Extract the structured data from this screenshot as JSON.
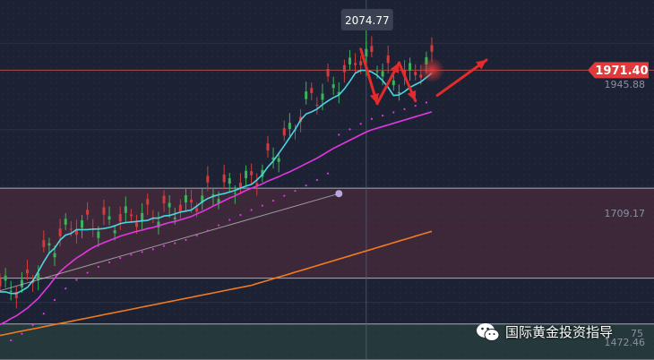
{
  "chart_data": {
    "type": "line",
    "title": "",
    "xlabel": "",
    "ylabel": "",
    "ylim": [
      1440,
      2100
    ],
    "x_count": 80,
    "price_axis_labels": [
      1945.88,
      1709.17,
      1472.46
    ],
    "current_price": 1971.4,
    "current_price_label": "1971.40",
    "peak_label": "2074.77",
    "peak_value": 2074.77,
    "peak_index": 67,
    "partial_label": "75",
    "zones": [
      {
        "name": "upper",
        "from": 1590,
        "to": 1755,
        "color": "#5a2e40"
      },
      {
        "name": "lower",
        "from": 1440,
        "to": 1506,
        "color": "#2d4a42"
      }
    ],
    "series": [
      {
        "color": "#4ad5e2",
        "values": [
          1565,
          1565,
          1562,
          1562,
          1567,
          1573,
          1585,
          1602,
          1620,
          1636,
          1645,
          1660,
          1669,
          1672,
          1679,
          1679,
          1679,
          1680,
          1680,
          1681,
          1683,
          1686,
          1690,
          1692,
          1693,
          1694,
          1695,
          1696,
          1700,
          1700,
          1704,
          1705,
          1708,
          1711,
          1713,
          1715,
          1722,
          1730,
          1736,
          1740,
          1743,
          1745,
          1748,
          1751,
          1755,
          1759,
          1762,
          1770,
          1780,
          1794,
          1805,
          1819,
          1833,
          1848,
          1863,
          1880,
          1891,
          1895,
          1900,
          1908,
          1915,
          1921,
          1926,
          1937,
          1951,
          1966,
          1971,
          1971,
          1968,
          1962,
          1952,
          1940,
          1925,
          1926,
          1932,
          1940,
          1945,
          1950,
          1958,
          1966
        ]
      },
      {
        "color": "#e237e0",
        "values": [
          1505,
          1510,
          1516,
          1521,
          1528,
          1535,
          1544,
          1553,
          1565,
          1577,
          1590,
          1602,
          1611,
          1619,
          1627,
          1633,
          1640,
          1646,
          1651,
          1655,
          1659,
          1663,
          1667,
          1670,
          1673,
          1676,
          1678,
          1681,
          1683,
          1686,
          1689,
          1692,
          1694,
          1697,
          1700,
          1703,
          1708,
          1712,
          1717,
          1722,
          1727,
          1732,
          1737,
          1741,
          1746,
          1751,
          1755,
          1759,
          1763,
          1768,
          1772,
          1776,
          1781,
          1785,
          1790,
          1795,
          1800,
          1805,
          1810,
          1816,
          1822,
          1828,
          1833,
          1838,
          1843,
          1848,
          1853,
          1858,
          1862,
          1865,
          1868,
          1871,
          1874,
          1877,
          1880,
          1883,
          1886,
          1889,
          1892,
          1895
        ]
      },
      {
        "color": "#f27a1f",
        "values": [
          1485,
          1487,
          1489,
          1491,
          1493,
          1495,
          1497,
          1499,
          1501,
          1503,
          1505,
          1507,
          1509,
          1511,
          1513,
          1515,
          1517,
          1519,
          1521,
          1523,
          1525,
          1527,
          1529,
          1531,
          1533,
          1535,
          1537,
          1539,
          1541,
          1543,
          1545,
          1547,
          1549,
          1551,
          1553,
          1555,
          1557,
          1559,
          1561,
          1563,
          1565,
          1567,
          1569,
          1571,
          1573,
          1575,
          1577,
          1580,
          1583,
          1586,
          1589,
          1592,
          1595,
          1598,
          1601,
          1604,
          1607,
          1610,
          1613,
          1616,
          1619,
          1622,
          1625,
          1628,
          1631,
          1634,
          1637,
          1640,
          1643,
          1646,
          1649,
          1652,
          1655,
          1658,
          1661,
          1664,
          1667,
          1670,
          1673,
          1676
        ]
      },
      {
        "color": "#c8c8c8",
        "values": [
          1567,
          null,
          null,
          null,
          null,
          null,
          null,
          null,
          null,
          null,
          null,
          null,
          null,
          null,
          null,
          null,
          null,
          null,
          null,
          null,
          null,
          null,
          null,
          null,
          null,
          null,
          null,
          null,
          null,
          null,
          null,
          null,
          null,
          null,
          null,
          null,
          null,
          null,
          null,
          null,
          null,
          null,
          null,
          null,
          null,
          null,
          null,
          null,
          null,
          null,
          null,
          null,
          null,
          null,
          null,
          null,
          null,
          null,
          null,
          null,
          null,
          null,
          1745,
          null,
          null,
          null,
          null,
          null,
          null,
          null,
          null,
          null,
          null,
          null,
          null,
          null,
          null,
          null,
          null,
          null
        ]
      }
    ],
    "arrows": [
      {
        "from": [
          66,
          2010
        ],
        "to": [
          69,
          1910
        ]
      },
      {
        "from": [
          69,
          1910
        ],
        "to": [
          73,
          1985
        ]
      },
      {
        "from": [
          73,
          1985
        ],
        "to": [
          76,
          1915
        ]
      },
      {
        "from": [
          80,
          1925
        ],
        "to": [
          89,
          1990
        ]
      }
    ]
  },
  "watermark": {
    "icon": "wechat-icon",
    "label": "国际黄金投资指导"
  }
}
